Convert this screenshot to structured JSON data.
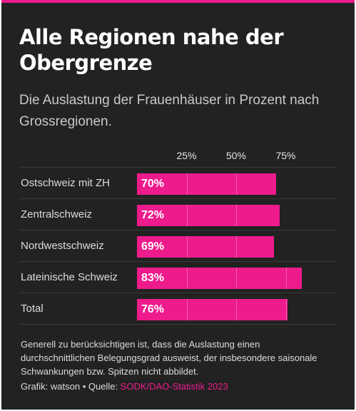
{
  "chart_data": {
    "type": "bar",
    "orientation": "horizontal",
    "title": "Alle Regionen nahe der Obergrenze",
    "subtitle": "Die Auslastung der Frauenhäuser in Prozent nach Grossregionen.",
    "categories": [
      "Ostschweiz mit ZH",
      "Zentralschweiz",
      "Nordwestschweiz",
      "Lateinische Schweiz",
      "Total"
    ],
    "values": [
      70,
      72,
      69,
      83,
      76
    ],
    "value_labels": [
      "70%",
      "72%",
      "69%",
      "83%",
      "76%"
    ],
    "ticks": [
      25,
      50,
      75
    ],
    "tick_labels": [
      "25%",
      "50%",
      "75%"
    ],
    "xlim": [
      0,
      100
    ],
    "legend": "none",
    "bar_color": "#ee1b8c",
    "accent_color": "#ee1b8c",
    "background_color": "#222222"
  },
  "footer": {
    "note": "Generell zu berücksichtigen ist, dass die Auslastung einen durchschnittlichen Belegungsgrad ausweist, der insbesondere saisonale Schwankungen bzw. Spitzen nicht abbildet.",
    "source_prefix": "Grafik: watson • Quelle: ",
    "source_link": "SODK/DAO-Statistik 2023"
  }
}
